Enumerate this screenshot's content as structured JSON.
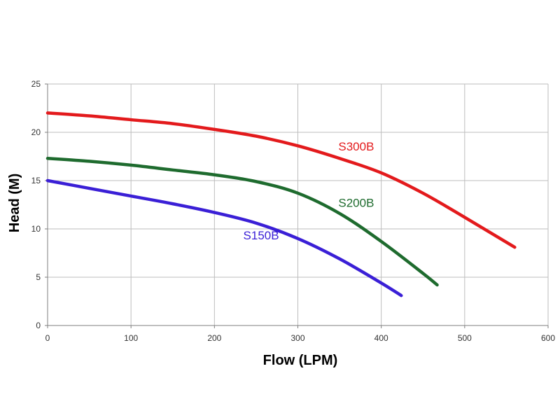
{
  "chart_data": {
    "type": "line",
    "title": "",
    "xlabel": "Flow (LPM)",
    "ylabel": "Head (M)",
    "xlim": [
      0,
      600
    ],
    "ylim": [
      0,
      25
    ],
    "xticks": [
      0,
      100,
      200,
      300,
      400,
      500,
      600
    ],
    "yticks": [
      0,
      5,
      10,
      15,
      20,
      25
    ],
    "grid": true,
    "legend": "inline labels",
    "series": [
      {
        "name": "S300B",
        "color": "#e31a1c",
        "x": [
          0,
          50,
          100,
          150,
          200,
          250,
          300,
          350,
          400,
          450,
          500,
          560
        ],
        "y": [
          22.0,
          21.7,
          21.3,
          20.9,
          20.3,
          19.6,
          18.6,
          17.3,
          15.8,
          13.7,
          11.2,
          8.1
        ]
      },
      {
        "name": "S200B",
        "color": "#1e6b2e",
        "x": [
          0,
          50,
          100,
          150,
          200,
          250,
          300,
          350,
          400,
          450,
          467
        ],
        "y": [
          17.3,
          17.0,
          16.6,
          16.1,
          15.6,
          14.9,
          13.7,
          11.6,
          8.7,
          5.4,
          4.2
        ]
      },
      {
        "name": "S150B",
        "color": "#3a1fd6",
        "x": [
          0,
          50,
          100,
          150,
          200,
          250,
          300,
          350,
          400,
          424
        ],
        "y": [
          15.0,
          14.2,
          13.4,
          12.6,
          11.7,
          10.6,
          9.0,
          6.9,
          4.4,
          3.1
        ]
      }
    ],
    "label_positions": [
      {
        "series": "S300B",
        "x": 370,
        "y": 18.1
      },
      {
        "series": "S200B",
        "x": 370,
        "y": 12.3
      },
      {
        "series": "S150B",
        "x": 256,
        "y": 8.9
      }
    ]
  }
}
